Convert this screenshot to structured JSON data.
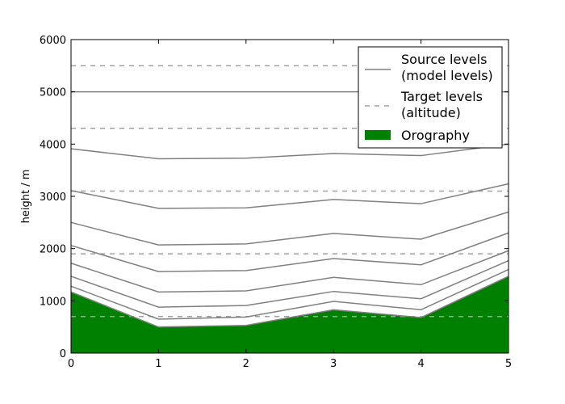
{
  "chart_data": {
    "type": "line",
    "title": "",
    "xlabel": "",
    "ylabel": "height / m",
    "xlim": [
      0,
      5
    ],
    "ylim": [
      0,
      6000
    ],
    "x_ticks": [
      "0",
      "1",
      "2",
      "3",
      "4",
      "5"
    ],
    "y_ticks": [
      "0",
      "1000",
      "2000",
      "3000",
      "4000",
      "5000",
      "6000"
    ],
    "grid": false,
    "legend_placement": "top-right",
    "x": [
      0,
      1,
      2,
      3,
      4,
      5
    ],
    "orography": {
      "name": "Orography",
      "color": "#008000",
      "values": [
        1170,
        500,
        530,
        830,
        680,
        1470
      ]
    },
    "source_levels": {
      "name": "Source levels\n(model levels)",
      "color": "#808080",
      "series": [
        [
          1170,
          500,
          530,
          830,
          680,
          1470
        ],
        [
          1280,
          650,
          690,
          990,
          830,
          1600
        ],
        [
          1470,
          880,
          910,
          1180,
          1040,
          1770
        ],
        [
          1720,
          1170,
          1190,
          1450,
          1310,
          1960
        ],
        [
          2060,
          1560,
          1580,
          1810,
          1690,
          2300
        ],
        [
          2500,
          2070,
          2090,
          2290,
          2180,
          2700
        ],
        [
          3110,
          2770,
          2780,
          2940,
          2860,
          3240
        ],
        [
          3910,
          3720,
          3730,
          3820,
          3780,
          4000
        ],
        [
          5000,
          5000,
          5000,
          5000,
          5000,
          5000
        ]
      ]
    },
    "target_levels": {
      "name": "Target levels\n(altitude)",
      "color": "#a0a0a0",
      "values": [
        700,
        1900,
        3100,
        4300,
        5500
      ]
    }
  }
}
